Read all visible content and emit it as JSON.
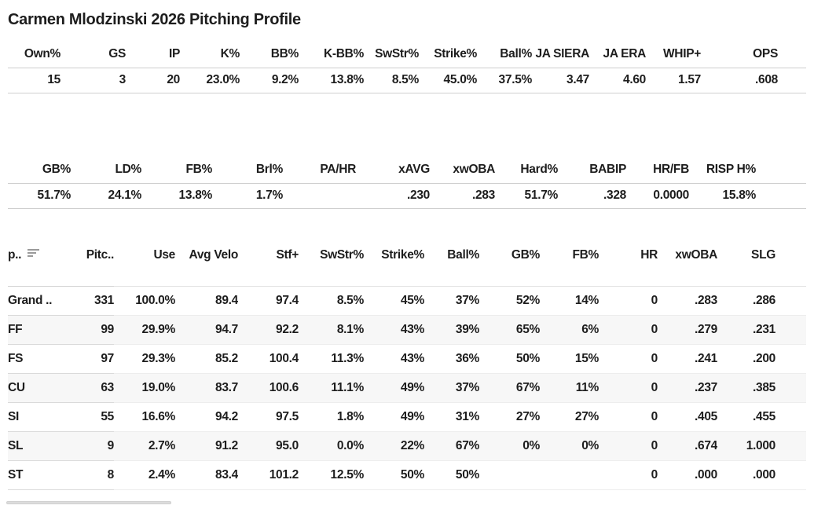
{
  "title": "Carmen Mlodzinski 2026 Pitching Profile",
  "summary_top": {
    "headers": [
      "Own%",
      "GS",
      "IP",
      "K%",
      "BB%",
      "K-BB%",
      "SwStr%",
      "Strike%",
      "Ball%",
      "JA SIERA",
      "JA ERA",
      "WHIP+",
      "OPS"
    ],
    "values": [
      "15",
      "3",
      "20",
      "23.0%",
      "9.2%",
      "13.8%",
      "8.5%",
      "45.0%",
      "37.5%",
      "3.47",
      "4.60",
      "1.57",
      ".608"
    ]
  },
  "summary_batted": {
    "headers": [
      "GB%",
      "LD%",
      "FB%",
      "Brl%",
      "PA/HR",
      "xAVG",
      "xwOBA",
      "Hard%",
      "BABIP",
      "HR/FB",
      "RISP H%"
    ],
    "values": [
      "51.7%",
      "24.1%",
      "13.8%",
      "1.7%",
      "",
      ".230",
      ".283",
      "51.7%",
      ".328",
      "0.0000",
      "15.8%"
    ]
  },
  "pitch_table": {
    "headers": [
      "p..",
      "Pitc..",
      "Use",
      "Avg Velo",
      "Stf+",
      "SwStr%",
      "Strike%",
      "Ball%",
      "GB%",
      "FB%",
      "HR",
      "xwOBA",
      "SLG"
    ],
    "sort_icon": "sort-descending-icon",
    "rows": [
      [
        "Grand ..",
        "331",
        "100.0%",
        "89.4",
        "97.4",
        "8.5%",
        "45%",
        "37%",
        "52%",
        "14%",
        "0",
        ".283",
        ".286"
      ],
      [
        "FF",
        "99",
        "29.9%",
        "94.7",
        "92.2",
        "8.1%",
        "43%",
        "39%",
        "65%",
        "6%",
        "0",
        ".279",
        ".231"
      ],
      [
        "FS",
        "97",
        "29.3%",
        "85.2",
        "100.4",
        "11.3%",
        "43%",
        "36%",
        "50%",
        "15%",
        "0",
        ".241",
        ".200"
      ],
      [
        "CU",
        "63",
        "19.0%",
        "83.7",
        "100.6",
        "11.1%",
        "49%",
        "37%",
        "67%",
        "11%",
        "0",
        ".237",
        ".385"
      ],
      [
        "SI",
        "55",
        "16.6%",
        "94.2",
        "97.5",
        "1.8%",
        "49%",
        "31%",
        "27%",
        "27%",
        "0",
        ".405",
        ".455"
      ],
      [
        "SL",
        "9",
        "2.7%",
        "91.2",
        "95.0",
        "0.0%",
        "22%",
        "67%",
        "0%",
        "0%",
        "0",
        ".674",
        "1.000"
      ],
      [
        "ST",
        "8",
        "2.4%",
        "83.4",
        "101.2",
        "12.5%",
        "50%",
        "50%",
        "",
        "",
        "0",
        ".000",
        ".000"
      ]
    ]
  },
  "colors": {
    "text": "#1d1d1d",
    "row_stripe": "#f7f7f7",
    "border_strong": "#cfcfcf",
    "border_light": "#ededed",
    "sort_icon": "#9a9a9a",
    "scrollbar_thumb": "#dcdcdc"
  }
}
